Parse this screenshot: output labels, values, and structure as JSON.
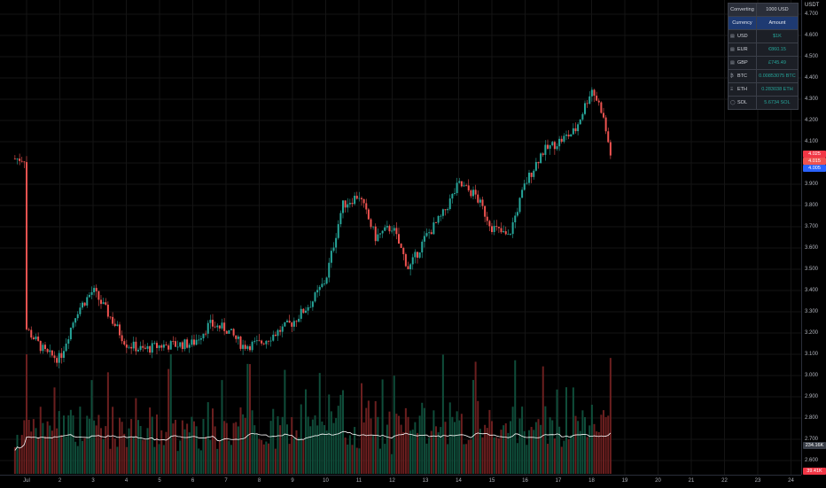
{
  "axis": {
    "unit": "USDT",
    "price_ticks": [
      "4.700",
      "4.600",
      "4.500",
      "4.400",
      "4.300",
      "4.200",
      "4.100",
      "4.000",
      "3.900",
      "3.800",
      "3.700",
      "3.600",
      "3.500",
      "3.400",
      "3.300",
      "3.200",
      "3.100",
      "3.000",
      "2.900",
      "2.800",
      "2.700",
      "2.600"
    ],
    "time_ticks": [
      "Jul",
      "2",
      "3",
      "4",
      "5",
      "6",
      "7",
      "8",
      "9",
      "10",
      "11",
      "12",
      "13",
      "14",
      "15",
      "16",
      "17",
      "18",
      "19",
      "20",
      "21",
      "22",
      "23",
      "24"
    ],
    "tags": [
      {
        "text": "4.025",
        "color": "#f23645"
      },
      {
        "text": "4.015",
        "color": "#ef5350"
      },
      {
        "text": "4.005",
        "color": "#2962ff"
      },
      {
        "text": "234.16K",
        "color": "#3a3f49"
      },
      {
        "text": "39.41K",
        "color": "#f23645"
      }
    ]
  },
  "converter": {
    "converting_label": "Converting",
    "converting_value": "1000 USD",
    "col_currency": "Currency",
    "col_amount": "Amount",
    "rows": [
      {
        "icon": "▤",
        "currency": "USD",
        "amount": "$1K"
      },
      {
        "icon": "▤",
        "currency": "EUR",
        "amount": "€860.15"
      },
      {
        "icon": "▤",
        "currency": "GBP",
        "amount": "£745.49"
      },
      {
        "icon": "₿",
        "currency": "BTC",
        "amount": "0.00853075 BTC"
      },
      {
        "icon": "Ξ",
        "currency": "ETH",
        "amount": "0.283038 ETH"
      },
      {
        "icon": "◯",
        "currency": "SOL",
        "amount": "5.6734 SOL"
      }
    ]
  },
  "chart_data": {
    "type": "candlestick",
    "y_range": [
      2.6,
      4.75
    ],
    "x_range_days": [
      "Jul 1",
      "Jul 24"
    ],
    "grid": true,
    "colors": {
      "up": "#26a69a",
      "down": "#ef5350",
      "volume_ma": "#ffffff"
    },
    "close_path": [
      [
        "Jul 1",
        3.22
      ],
      [
        "Jul 1.6",
        3.1
      ],
      [
        "Jul 2",
        3.08
      ],
      [
        "Jul 2.5",
        3.3
      ],
      [
        "Jul 3",
        3.4
      ],
      [
        "Jul 3.5",
        3.28
      ],
      [
        "Jul 4",
        3.15
      ],
      [
        "Jul 4.5",
        3.12
      ],
      [
        "Jul 5",
        3.14
      ],
      [
        "Jul 6",
        3.15
      ],
      [
        "Jul 6.5",
        3.24
      ],
      [
        "Jul 7",
        3.22
      ],
      [
        "Jul 7.5",
        3.14
      ],
      [
        "Jul 8",
        3.15
      ],
      [
        "Jul 8.5",
        3.2
      ],
      [
        "Jul 9",
        3.25
      ],
      [
        "Jul 9.6",
        3.35
      ],
      [
        "Jul 10",
        3.45
      ],
      [
        "Jul 10.5",
        3.8
      ],
      [
        "Jul 11",
        3.85
      ],
      [
        "Jul 11.5",
        3.65
      ],
      [
        "Jul 12",
        3.7
      ],
      [
        "Jul 12.5",
        3.5
      ],
      [
        "Jul 13",
        3.65
      ],
      [
        "Jul 13.5",
        3.75
      ],
      [
        "Jul 14",
        3.9
      ],
      [
        "Jul 14.5",
        3.85
      ],
      [
        "Jul 15",
        3.7
      ],
      [
        "Jul 15.5",
        3.65
      ],
      [
        "Jul 16",
        3.9
      ],
      [
        "Jul 16.5",
        4.05
      ],
      [
        "Jul 17",
        4.1
      ],
      [
        "Jul 17.5",
        4.15
      ],
      [
        "Jul 18",
        4.35
      ],
      [
        "Jul 18.3",
        4.25
      ],
      [
        "Jul 18.6",
        4.02
      ]
    ]
  }
}
